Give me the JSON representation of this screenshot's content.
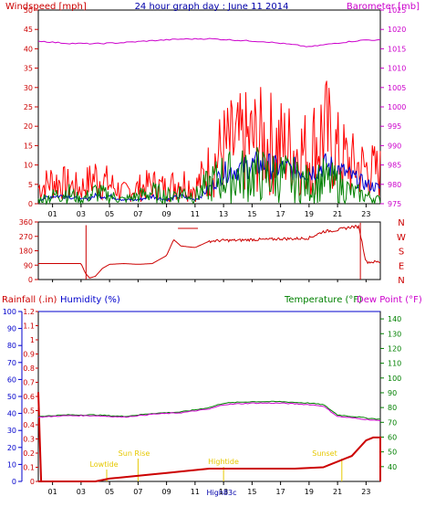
{
  "chart_data": [
    {
      "type": "line",
      "title": "24 hour graph day : June 11 2014",
      "left_axis_label": "Windspeed [mph]",
      "right_axis_label": "Barometer [mb]",
      "y_ticks": [
        "0",
        "5",
        "10",
        "15",
        "20",
        "25",
        "30",
        "35",
        "40",
        "45",
        "50"
      ],
      "y2_ticks": [
        "975",
        "980",
        "985",
        "990",
        "995",
        "1000",
        "1005",
        "1010",
        "1015",
        "1020",
        "1025"
      ],
      "x_ticks": [
        "01",
        "03",
        "05",
        "07",
        "09",
        "11",
        "13",
        "15",
        "17",
        "19",
        "21",
        "23"
      ],
      "ylim": [
        0,
        50
      ],
      "y2lim": [
        975,
        1025
      ],
      "series": [
        {
          "color": "#ff0000",
          "values": [
            [
              0,
              4
            ],
            [
              1,
              6
            ],
            [
              2,
              5
            ],
            [
              3,
              4
            ],
            [
              4,
              7
            ],
            [
              5,
              5
            ],
            [
              6,
              3
            ],
            [
              7,
              4
            ],
            [
              8,
              5
            ],
            [
              9,
              4
            ],
            [
              10,
              6
            ],
            [
              11,
              4
            ],
            [
              12,
              9
            ],
            [
              13,
              14
            ],
            [
              14,
              15
            ],
            [
              15,
              16
            ],
            [
              16,
              16
            ],
            [
              17,
              15
            ],
            [
              18,
              14
            ],
            [
              19,
              13
            ],
            [
              20,
              19
            ],
            [
              21,
              13
            ],
            [
              22,
              10
            ],
            [
              23,
              9
            ],
            [
              24,
              8
            ]
          ]
        },
        {
          "color": "#0000cc",
          "values": [
            [
              0,
              1
            ],
            [
              1,
              2
            ],
            [
              2,
              2
            ],
            [
              3,
              1
            ],
            [
              4,
              2
            ],
            [
              5,
              2
            ],
            [
              6,
              1
            ],
            [
              7,
              1
            ],
            [
              8,
              2
            ],
            [
              9,
              1
            ],
            [
              10,
              2
            ],
            [
              11,
              1
            ],
            [
              12,
              4
            ],
            [
              13,
              8
            ],
            [
              14,
              9
            ],
            [
              15,
              10
            ],
            [
              16,
              10
            ],
            [
              17,
              9
            ],
            [
              18,
              9
            ],
            [
              19,
              8
            ],
            [
              20,
              10
            ],
            [
              21,
              9
            ],
            [
              22,
              7
            ],
            [
              23,
              5
            ],
            [
              24,
              4
            ]
          ]
        },
        {
          "color": "#008000",
          "values": [
            [
              0,
              1
            ],
            [
              1,
              2
            ],
            [
              2,
              3
            ],
            [
              3,
              1
            ],
            [
              4,
              3
            ],
            [
              5,
              2
            ],
            [
              6,
              1
            ],
            [
              7,
              2
            ],
            [
              8,
              3
            ],
            [
              9,
              2
            ],
            [
              10,
              3
            ],
            [
              11,
              2
            ],
            [
              12,
              5
            ],
            [
              13,
              7
            ],
            [
              14,
              7
            ],
            [
              15,
              8
            ],
            [
              16,
              7
            ],
            [
              17,
              7
            ],
            [
              18,
              6
            ],
            [
              19,
              5
            ],
            [
              20,
              6
            ],
            [
              21,
              5
            ],
            [
              22,
              3
            ],
            [
              23,
              2
            ],
            [
              24,
              1
            ]
          ]
        },
        {
          "color": "#cc00cc",
          "axis": "right",
          "values": [
            [
              0,
              1017
            ],
            [
              2,
              1016.4
            ],
            [
              4,
              1016.3
            ],
            [
              6,
              1016.6
            ],
            [
              8,
              1017.1
            ],
            [
              10,
              1017.5
            ],
            [
              12,
              1017.6
            ],
            [
              14,
              1017.2
            ],
            [
              16,
              1016.8
            ],
            [
              18,
              1016
            ],
            [
              19,
              1015.5
            ],
            [
              21,
              1016.5
            ],
            [
              23,
              1017.3
            ],
            [
              24,
              1017.2
            ]
          ]
        }
      ]
    },
    {
      "type": "line",
      "y_ticks": [
        "360",
        "270",
        "180",
        "90",
        "0"
      ],
      "right_labels": [
        "N",
        "W",
        "S",
        "E",
        "N"
      ],
      "x_ticks": [
        "01",
        "03",
        "05",
        "07",
        "09",
        "11",
        "13",
        "15",
        "17",
        "19",
        "21",
        "23"
      ],
      "ylim": [
        0,
        360
      ],
      "series": [
        {
          "color": "#cc0000",
          "values": [
            [
              0,
              100
            ],
            [
              3,
              100
            ],
            [
              3.3,
              40
            ],
            [
              3.6,
              10
            ],
            [
              4,
              20
            ],
            [
              4.5,
              70
            ],
            [
              5,
              95
            ],
            [
              6,
              100
            ],
            [
              7,
              95
            ],
            [
              8,
              100
            ],
            [
              9,
              150
            ],
            [
              9.5,
              250
            ],
            [
              10,
              210
            ],
            [
              11,
              200
            ],
            [
              12,
              240
            ],
            [
              13,
              245
            ],
            [
              14,
              245
            ],
            [
              15,
              250
            ],
            [
              16,
              250
            ],
            [
              17,
              255
            ],
            [
              18,
              255
            ],
            [
              19,
              260
            ],
            [
              20,
              300
            ],
            [
              21,
              310
            ],
            [
              21.5,
              320
            ],
            [
              22,
              330
            ],
            [
              22.5,
              330
            ],
            [
              23,
              110
            ],
            [
              24,
              110
            ]
          ]
        }
      ]
    },
    {
      "type": "line",
      "left_axis_label": "Rainfall (.in)",
      "left2_axis_label": "Humidity (%)",
      "right_axis_label": "Temperature (°F)",
      "right2_axis_label": "Dew Point (°F)",
      "y_ticks": [
        "0",
        "0.1",
        "0.2",
        "0.3",
        "0.4",
        "0.5",
        "0.6",
        "0.7",
        "0.8",
        "0.9",
        "1",
        "1.1",
        "1.2"
      ],
      "y2_ticks": [
        "0",
        "10",
        "20",
        "30",
        "40",
        "50",
        "60",
        "70",
        "80",
        "90",
        "100"
      ],
      "y3_ticks": [
        "40",
        "50",
        "60",
        "70",
        "80",
        "90",
        "100",
        "110",
        "120",
        "130",
        "140"
      ],
      "x_ticks": [
        "01",
        "03",
        "05",
        "07",
        "09",
        "11",
        "13",
        "15",
        "17",
        "19",
        "21",
        "23"
      ],
      "rain_ylim": [
        0,
        1.2
      ],
      "temp_ylim": [
        30,
        145
      ],
      "annotations": [
        "Lowtide",
        "Sun Rise",
        "Hightide",
        "Sunset",
        "High83c"
      ],
      "series": [
        {
          "color": "#cc0000",
          "axis": "rain",
          "values": [
            [
              0,
              0
            ],
            [
              4,
              0
            ],
            [
              5,
              0.02
            ],
            [
              8,
              0.05
            ],
            [
              9,
              0.06
            ],
            [
              10,
              0.07
            ],
            [
              12,
              0.09
            ],
            [
              14,
              0.09
            ],
            [
              16,
              0.09
            ],
            [
              18,
              0.09
            ],
            [
              20,
              0.1
            ],
            [
              21,
              0.14
            ],
            [
              22,
              0.18
            ],
            [
              23,
              0.29
            ],
            [
              23.5,
              0.31
            ],
            [
              24,
              0.31
            ]
          ]
        },
        {
          "color": "#0000cc",
          "axis": "left2",
          "values": [
            [
              0,
              100
            ],
            [
              24,
              100
            ]
          ]
        },
        {
          "color": "#008000",
          "axis": "temp",
          "values": [
            [
              0,
              74
            ],
            [
              2,
              75
            ],
            [
              4,
              75
            ],
            [
              6,
              74
            ],
            [
              8,
              76
            ],
            [
              10,
              77
            ],
            [
              12,
              80
            ],
            [
              13,
              83
            ],
            [
              15,
              84
            ],
            [
              17,
              84
            ],
            [
              19,
              83
            ],
            [
              20,
              82
            ],
            [
              21,
              75
            ],
            [
              22,
              74
            ],
            [
              23,
              73
            ],
            [
              24,
              72
            ]
          ]
        },
        {
          "color": "#cc00cc",
          "axis": "temp",
          "values": [
            [
              0,
              73.5
            ],
            [
              2,
              74.5
            ],
            [
              4,
              74.5
            ],
            [
              6,
              73.5
            ],
            [
              8,
              75.5
            ],
            [
              10,
              76.5
            ],
            [
              12,
              79
            ],
            [
              13,
              82
            ],
            [
              15,
              83
            ],
            [
              17,
              83
            ],
            [
              19,
              82
            ],
            [
              20,
              81
            ],
            [
              21,
              74
            ],
            [
              22,
              73
            ],
            [
              23,
              72
            ],
            [
              24,
              71
            ]
          ]
        }
      ]
    }
  ]
}
